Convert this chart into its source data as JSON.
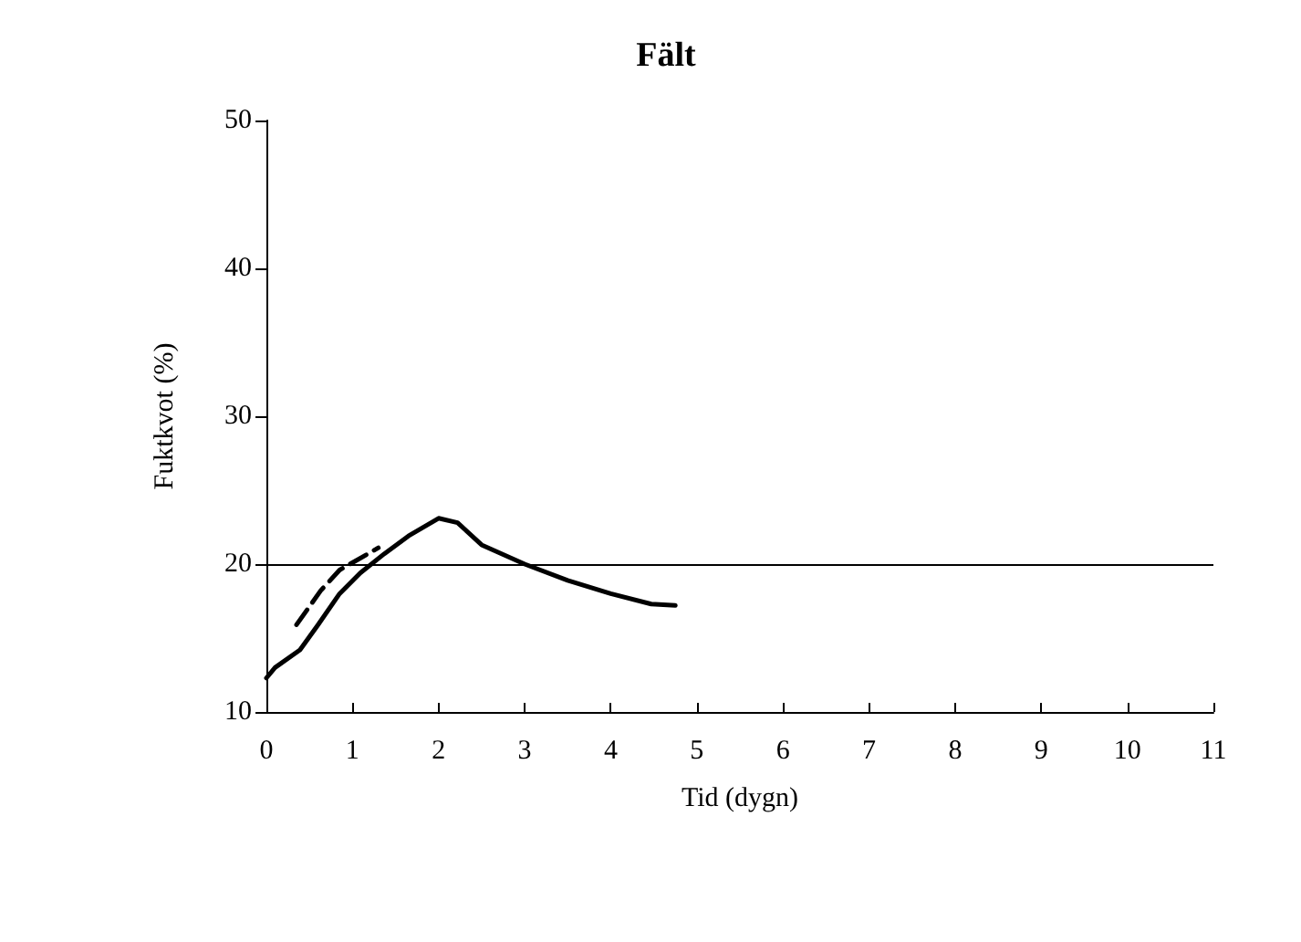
{
  "chart_data": {
    "type": "line",
    "title": "Fält",
    "xlabel": "Tid (dygn)",
    "ylabel": "Fuktkvot (%)",
    "xlim": [
      0,
      11
    ],
    "xticks": [
      0,
      1,
      2,
      3,
      4,
      5,
      6,
      7,
      8,
      9,
      10,
      11
    ],
    "ylim": [
      10,
      50
    ],
    "yticks": [
      10,
      20,
      30,
      40,
      50
    ],
    "grid": false,
    "marker": "none",
    "series": [
      {
        "color": "#000000",
        "line_style": "solid",
        "x": [
          0,
          0.1,
          0.39,
          0.6,
          0.85,
          1.09,
          1.37,
          1.65,
          2.0,
          2.22,
          2.5,
          3.0,
          3.5,
          4.0,
          4.47,
          4.75
        ],
        "values": [
          12.3,
          13,
          14.2,
          15.9,
          18,
          19.4,
          20.7,
          21.9,
          23.1,
          22.8,
          21.3,
          20,
          18.9,
          18,
          17.3,
          17.2
        ]
      },
      {
        "color": "#000000",
        "line_style": "dashed",
        "x": [
          0.35,
          0.63,
          0.85,
          1.3
        ],
        "values": [
          15.9,
          18.2,
          19.6,
          21.1
        ]
      }
    ],
    "ref_lines": [
      {
        "axis": "y",
        "value": 20,
        "color": "#000000",
        "line_style": "solid"
      }
    ]
  }
}
